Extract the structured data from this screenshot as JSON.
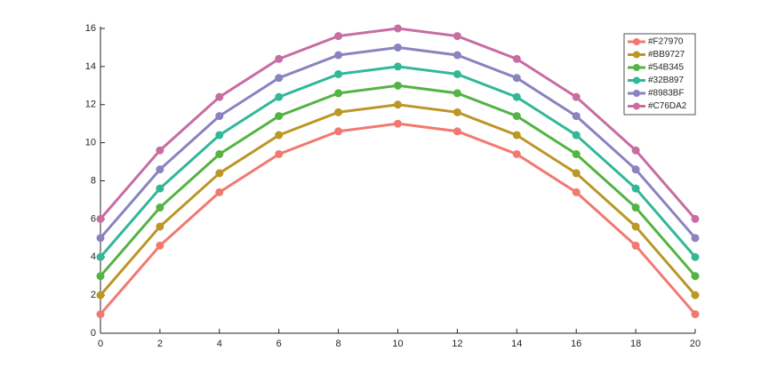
{
  "chart_data": {
    "type": "line",
    "x": [
      0,
      2,
      4,
      6,
      8,
      10,
      12,
      14,
      16,
      18,
      20
    ],
    "xlim": [
      0,
      20
    ],
    "xticks": [
      0,
      2,
      4,
      6,
      8,
      10,
      12,
      14,
      16,
      18,
      20
    ],
    "ylim": [
      0,
      16
    ],
    "yticks": [
      0,
      2,
      4,
      6,
      8,
      10,
      12,
      14,
      16
    ],
    "legend": "upper right",
    "series": [
      {
        "name": "#F27970",
        "color": "#F27970",
        "values": [
          1,
          4.6,
          7.4,
          9.4,
          10.6,
          11,
          10.6,
          9.4,
          7.4,
          4.6,
          1
        ]
      },
      {
        "name": "#BB9727",
        "color": "#BB9727",
        "values": [
          2,
          5.6,
          8.4,
          10.4,
          11.6,
          12,
          11.6,
          10.4,
          8.4,
          5.6,
          2
        ]
      },
      {
        "name": "#54B345",
        "color": "#54B345",
        "values": [
          3,
          6.6,
          9.4,
          11.4,
          12.6,
          13,
          12.6,
          11.4,
          9.4,
          6.6,
          3
        ]
      },
      {
        "name": "#32B897",
        "color": "#32B897",
        "values": [
          4,
          7.6,
          10.4,
          12.4,
          13.6,
          14,
          13.6,
          12.4,
          10.4,
          7.6,
          4
        ]
      },
      {
        "name": "#8983BF",
        "color": "#8983BF",
        "values": [
          5,
          8.6,
          11.4,
          13.4,
          14.6,
          15,
          14.6,
          13.4,
          11.4,
          8.6,
          5
        ]
      },
      {
        "name": "#C76DA2",
        "color": "#C76DA2",
        "values": [
          6,
          9.6,
          12.4,
          14.4,
          15.6,
          16,
          15.6,
          14.4,
          12.4,
          9.6,
          6
        ]
      }
    ]
  }
}
